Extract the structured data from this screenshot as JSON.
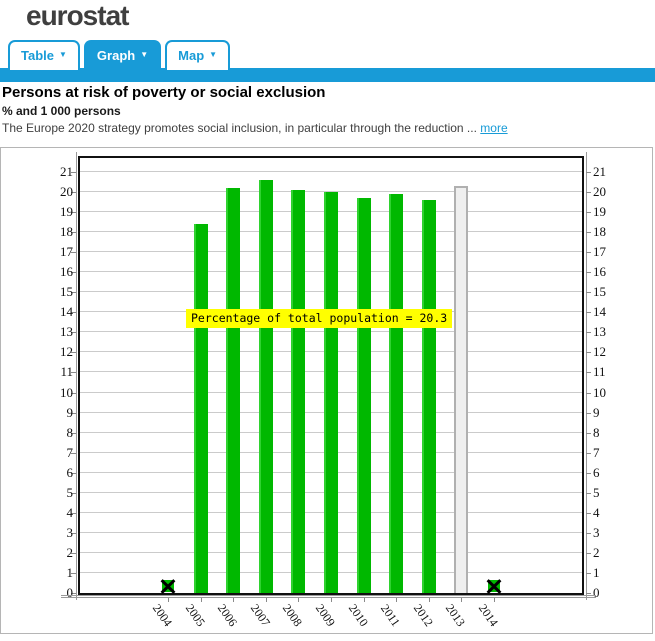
{
  "header": {
    "logo": "eurostat"
  },
  "icons": {
    "caret": "▼"
  },
  "tabs": [
    {
      "label": "Table",
      "active": false
    },
    {
      "label": "Graph",
      "active": true
    },
    {
      "label": "Map",
      "active": false
    }
  ],
  "page": {
    "title": "Persons at risk of poverty or social exclusion",
    "subtitle": "% and 1 000 persons",
    "description": "The Europe 2020 strategy promotes social inclusion, in particular through the reduction ...",
    "more_label": "more"
  },
  "tooltip": {
    "text": "Percentage of total population = 20.3"
  },
  "chart_data": {
    "type": "bar",
    "title": "Persons at risk of poverty or social exclusion",
    "ylabel": "Percentage of total population",
    "categories": [
      "2004",
      "2005",
      "2006",
      "2007",
      "2008",
      "2009",
      "2010",
      "2011",
      "2012",
      "2013",
      "2014"
    ],
    "values": [
      null,
      18.4,
      20.2,
      20.6,
      20.1,
      20.0,
      19.7,
      19.9,
      19.6,
      20.3,
      null
    ],
    "flagged_not_available": [
      "2004",
      "2014"
    ],
    "selected": {
      "category": "2013",
      "value": 20.3
    },
    "ylim": [
      0,
      21.8
    ],
    "yticks": [
      0,
      1,
      2,
      3,
      4,
      5,
      6,
      7,
      8,
      9,
      10,
      11,
      12,
      13,
      14,
      15,
      16,
      17,
      18,
      19,
      20,
      21
    ],
    "grid": true,
    "legend": "none",
    "bar_color": "#00b800",
    "selected_bar_fill": "#efefef",
    "selected_bar_border": "#b0b0b0",
    "flag_marker_color": "#00b800"
  }
}
